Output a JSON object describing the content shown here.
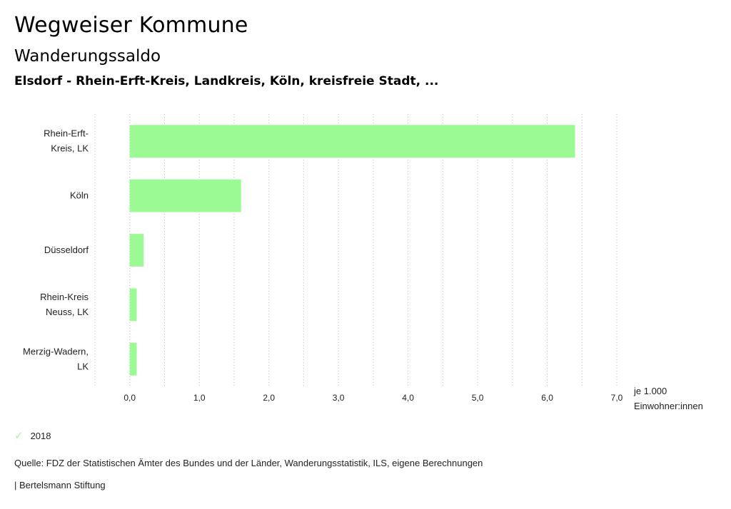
{
  "header": {
    "title": "Wegweiser Kommune",
    "subtitle": "Wanderungssaldo",
    "regions": "Elsdorf - Rhein-Erft-Kreis, Landkreis, Köln, kreisfreie Stadt, ..."
  },
  "chart_data": {
    "type": "bar",
    "orientation": "horizontal",
    "categories": [
      [
        "Rhein-Erft-",
        "Kreis, LK"
      ],
      [
        "Köln"
      ],
      [
        "Düsseldorf"
      ],
      [
        "Rhein-Kreis",
        "Neuss, LK"
      ],
      [
        "Merzig-Wadern,",
        "LK"
      ]
    ],
    "series": [
      {
        "name": "2018",
        "values": [
          6.4,
          1.6,
          0.2,
          0.1,
          0.1
        ],
        "color": "#9cfa94"
      }
    ],
    "xlim": [
      -0.5,
      7.0
    ],
    "ticks": [
      0,
      1,
      2,
      3,
      4,
      5,
      6,
      7
    ],
    "tick_labels": [
      "0,0",
      "1,0",
      "2,0",
      "3,0",
      "4,0",
      "5,0",
      "6,0",
      "7,0"
    ],
    "xlabel": [
      "je 1.000",
      "Einwohner:innen"
    ],
    "grid": "vertical-dotted",
    "legend_position": "bottom-left"
  },
  "legend": {
    "label": "2018",
    "icon": "check-icon"
  },
  "footer": {
    "source": "Quelle: FDZ der Statistischen Ämter des Bundes und der Länder, Wanderungsstatistik, ILS, eigene Berechnungen",
    "credit": "| Bertelsmann Stiftung"
  }
}
